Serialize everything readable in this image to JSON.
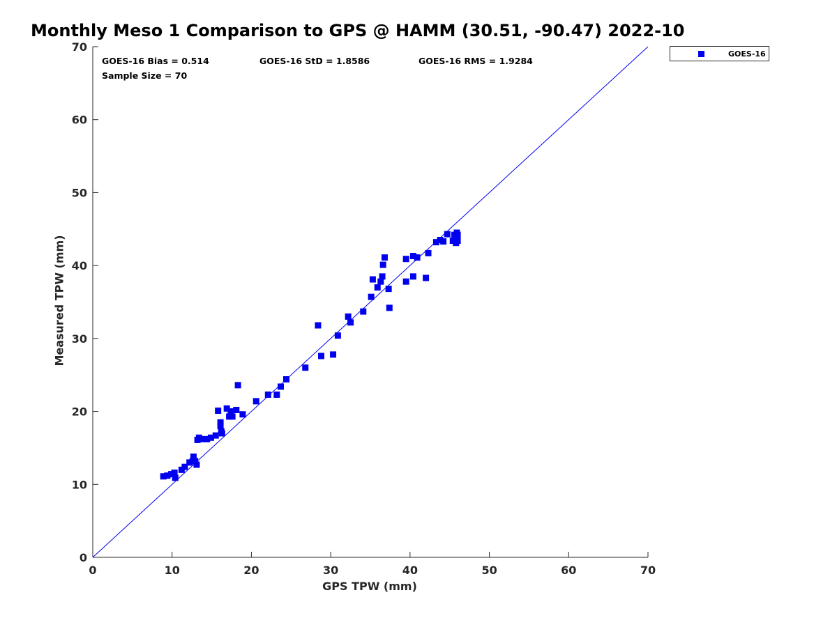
{
  "title": "Monthly Meso 1 Comparison to GPS @ HAMM (30.51, -90.47) 2022-10",
  "stats": {
    "bias": "GOES-16 Bias = 0.514",
    "std": "GOES-16 StD = 1.8586",
    "rms": "GOES-16 RMS = 1.9284",
    "sample": "Sample Size = 70"
  },
  "colors": {
    "series": "#0000ee",
    "axis": "#262626"
  },
  "chart_data": {
    "type": "scatter",
    "title": "Monthly Meso 1 Comparison to GPS @ HAMM (30.51, -90.47) 2022-10",
    "xlabel": "GPS TPW (mm)",
    "ylabel": "Measured TPW (mm)",
    "xlim": [
      0,
      70
    ],
    "ylim": [
      0,
      70
    ],
    "xticks": [
      0,
      10,
      20,
      30,
      40,
      50,
      60,
      70
    ],
    "yticks": [
      0,
      10,
      20,
      30,
      40,
      50,
      60,
      70
    ],
    "grid": false,
    "legend_position": "outside-top-right",
    "reference_line": {
      "from": [
        0,
        0
      ],
      "to": [
        70,
        70
      ]
    },
    "series": [
      {
        "name": "GOES-16",
        "marker": "square",
        "points": [
          [
            8.9,
            11.1
          ],
          [
            9.4,
            11.2
          ],
          [
            9.9,
            11.4
          ],
          [
            10.3,
            11.6
          ],
          [
            10.4,
            10.9
          ],
          [
            11.2,
            12.0
          ],
          [
            11.6,
            12.4
          ],
          [
            12.2,
            13.0
          ],
          [
            12.6,
            13.2
          ],
          [
            12.7,
            13.8
          ],
          [
            12.9,
            13.2
          ],
          [
            13.1,
            12.7
          ],
          [
            13.2,
            16.1
          ],
          [
            13.4,
            16.4
          ],
          [
            13.9,
            16.2
          ],
          [
            14.4,
            16.2
          ],
          [
            14.9,
            16.4
          ],
          [
            15.5,
            16.7
          ],
          [
            15.8,
            20.1
          ],
          [
            16.1,
            18.5
          ],
          [
            16.1,
            18.0
          ],
          [
            16.2,
            17.3
          ],
          [
            16.3,
            17.0
          ],
          [
            16.9,
            20.4
          ],
          [
            17.2,
            19.3
          ],
          [
            17.4,
            20.0
          ],
          [
            17.6,
            19.3
          ],
          [
            18.1,
            20.2
          ],
          [
            18.3,
            23.6
          ],
          [
            18.9,
            19.6
          ],
          [
            20.6,
            21.4
          ],
          [
            22.1,
            22.3
          ],
          [
            23.2,
            22.3
          ],
          [
            23.7,
            23.4
          ],
          [
            24.4,
            24.4
          ],
          [
            26.8,
            26.0
          ],
          [
            28.4,
            31.8
          ],
          [
            28.8,
            27.6
          ],
          [
            30.3,
            27.8
          ],
          [
            30.9,
            30.4
          ],
          [
            32.2,
            33.0
          ],
          [
            32.5,
            32.2
          ],
          [
            34.1,
            33.7
          ],
          [
            35.1,
            35.7
          ],
          [
            35.3,
            38.1
          ],
          [
            35.9,
            37.0
          ],
          [
            36.3,
            37.8
          ],
          [
            36.5,
            38.5
          ],
          [
            36.6,
            40.1
          ],
          [
            36.8,
            41.1
          ],
          [
            37.3,
            36.8
          ],
          [
            37.4,
            34.2
          ],
          [
            39.5,
            37.8
          ],
          [
            39.5,
            40.9
          ],
          [
            40.4,
            41.3
          ],
          [
            40.4,
            38.5
          ],
          [
            40.9,
            41.1
          ],
          [
            42.0,
            38.3
          ],
          [
            42.3,
            41.7
          ],
          [
            43.3,
            43.2
          ],
          [
            43.8,
            43.5
          ],
          [
            44.2,
            43.3
          ],
          [
            44.7,
            44.3
          ],
          [
            45.4,
            43.4
          ],
          [
            45.6,
            44.2
          ],
          [
            45.8,
            43.1
          ],
          [
            45.9,
            44.5
          ],
          [
            45.9,
            44.0
          ],
          [
            46.0,
            43.4
          ],
          [
            46.0,
            44.2
          ]
        ]
      }
    ]
  }
}
